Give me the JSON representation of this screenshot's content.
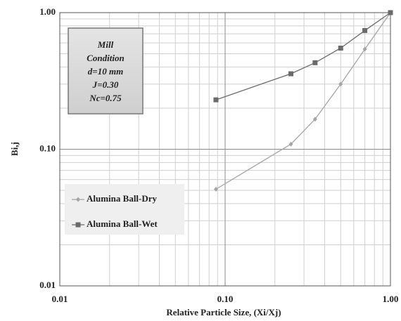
{
  "chart_data": {
    "type": "line",
    "xlabel": "Relative Particle Size, (Xi/Xj)",
    "ylabel": "Bi,j",
    "xscale": "log",
    "yscale": "log",
    "grid": true,
    "xlim": [
      0.01,
      1
    ],
    "ylim": [
      0.01,
      1
    ],
    "xticks": [
      {
        "value": 0.01,
        "label": "0.01"
      },
      {
        "value": 0.1,
        "label": "0.10"
      },
      {
        "value": 1,
        "label": "1.00"
      }
    ],
    "yticks": [
      {
        "value": 0.01,
        "label": "0.01"
      },
      {
        "value": 0.1,
        "label": "0.10"
      },
      {
        "value": 1,
        "label": "1.00"
      }
    ],
    "legend": "lower left",
    "annotation": [
      "Mill",
      "Condition",
      "d=10 mm",
      "J=0.30",
      "Nc=0.75"
    ],
    "series": [
      {
        "name": "Alumina Ball-Dry",
        "color": "#a5a5a5",
        "marker": "diamond",
        "x": [
          0.088,
          0.25,
          0.35,
          0.5,
          0.7,
          1.0
        ],
        "values": [
          0.051,
          0.109,
          0.166,
          0.3,
          0.54,
          1.0
        ]
      },
      {
        "name": "Alumina Ball-Wet",
        "color": "#6a6a6a",
        "marker": "square",
        "x": [
          0.088,
          0.25,
          0.35,
          0.5,
          0.7,
          1.0
        ],
        "values": [
          0.23,
          0.357,
          0.43,
          0.55,
          0.74,
          1.0
        ]
      }
    ]
  }
}
